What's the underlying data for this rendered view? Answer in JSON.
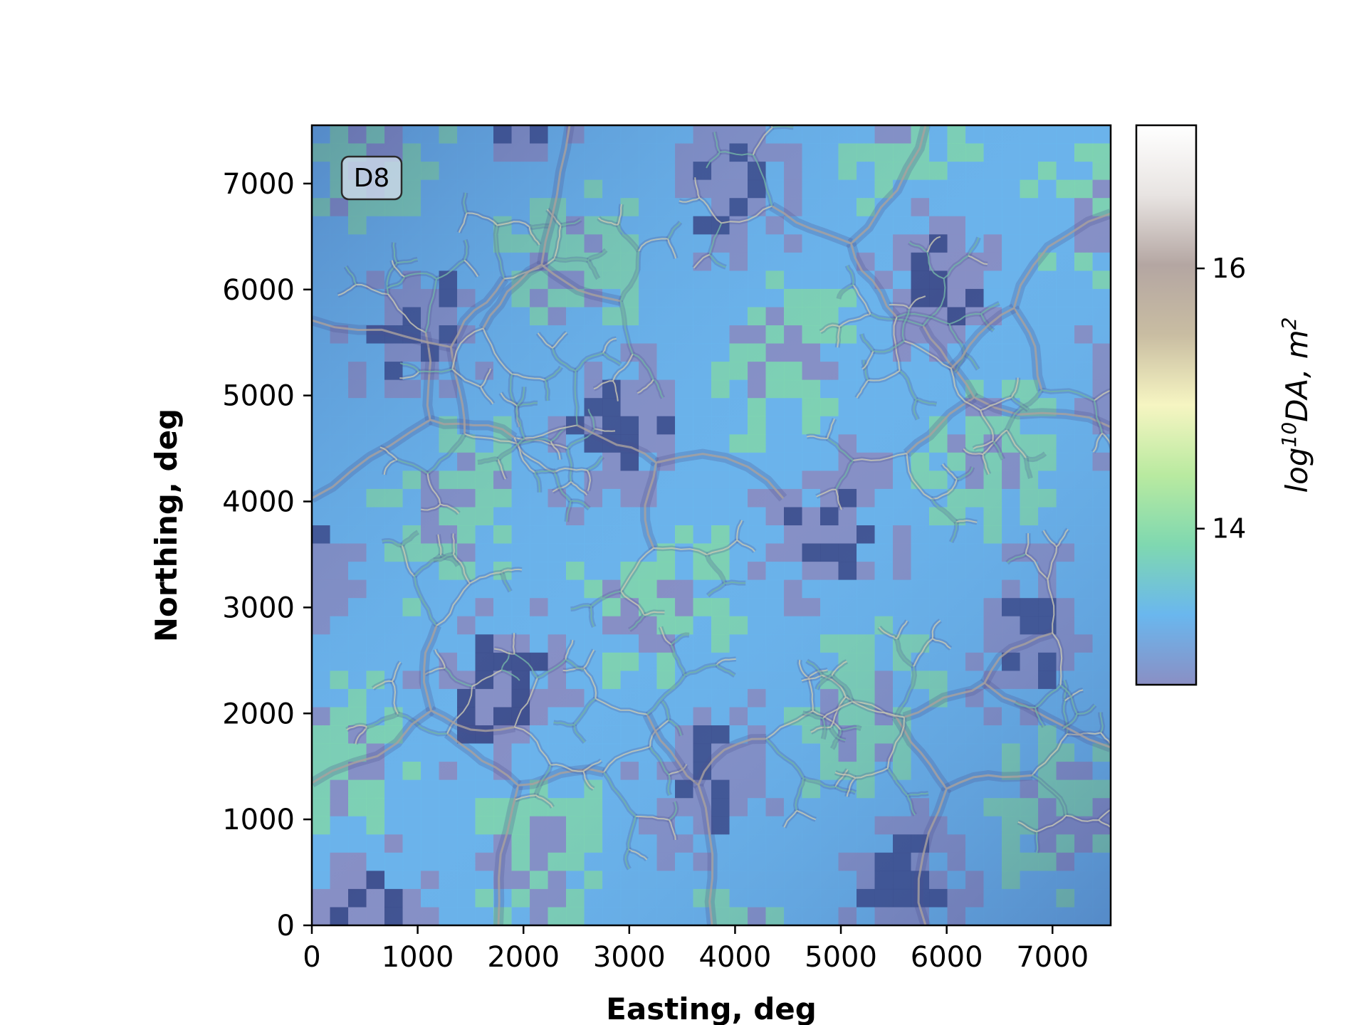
{
  "chart_data": {
    "type": "heatmap",
    "title": "",
    "xlabel": "Easting, deg",
    "ylabel": "Northing, deg",
    "xlim": [
      0,
      7550
    ],
    "ylim": [
      0,
      7550
    ],
    "x_ticks": [
      0,
      1000,
      2000,
      3000,
      4000,
      5000,
      6000,
      7000
    ],
    "y_ticks": [
      0,
      1000,
      2000,
      3000,
      4000,
      5000,
      6000,
      7000
    ],
    "annotation": "D8",
    "colorbar": {
      "label_base": "log",
      "label_exp1": "10",
      "label_mid": "DA, m",
      "label_exp2": "2",
      "range": [
        12.8,
        17.1
      ],
      "ticks": [
        14,
        16
      ],
      "colormap": [
        "#8a8fc4",
        "#6ab7ee",
        "#7fd8b0",
        "#b9eaa0",
        "#f6f5c2",
        "#c9bda2",
        "#b4a6a2",
        "#e8e4e2",
        "#ffffff"
      ]
    },
    "colors": {
      "low": "#8a8fc4",
      "mid": "#6ab7ee",
      "green": "#7fd8b0",
      "yellow": "#f6f5c2",
      "channel": "#c9bda2",
      "dark": "#3b4a8a"
    }
  }
}
